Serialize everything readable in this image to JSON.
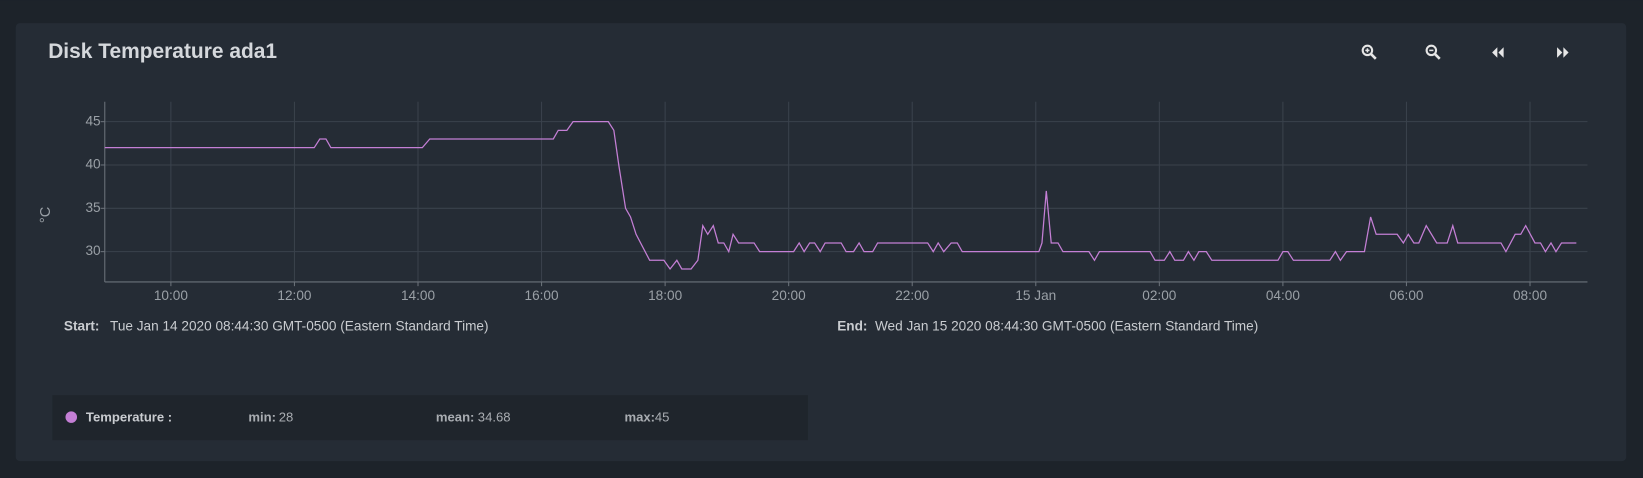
{
  "chart_data": {
    "type": "line",
    "title": "Disk Temperature ada1",
    "y_label": "°C",
    "x": [
      8.93,
      12.32,
      12.41,
      12.51,
      12.59,
      14.07,
      14.19,
      16.19,
      16.27,
      16.41,
      16.51,
      17.08,
      17.17,
      17.25,
      17.36,
      17.44,
      17.53,
      17.75,
      17.98,
      18.08,
      18.19,
      18.27,
      18.42,
      18.53,
      18.61,
      18.69,
      18.78,
      18.86,
      18.95,
      19.03,
      19.1,
      19.19,
      19.44,
      19.53,
      20.08,
      20.17,
      20.25,
      20.34,
      20.42,
      20.51,
      20.59,
      20.85,
      20.93,
      21.05,
      21.14,
      21.22,
      21.36,
      21.44,
      22.25,
      22.34,
      22.42,
      22.51,
      22.63,
      22.73,
      22.81,
      24.05,
      24.1,
      24.17,
      24.25,
      24.36,
      24.44,
      24.86,
      24.95,
      25.03,
      25.85,
      25.93,
      26.08,
      26.17,
      26.25,
      26.39,
      26.47,
      26.56,
      26.64,
      26.76,
      26.85,
      27.92,
      28.0,
      28.08,
      28.17,
      28.76,
      28.85,
      28.93,
      29.03,
      29.32,
      29.42,
      29.51,
      29.85,
      29.95,
      30.03,
      30.12,
      30.2,
      30.32,
      30.49,
      30.66,
      30.75,
      30.83,
      31.53,
      31.61,
      31.76,
      31.85,
      31.93,
      32.08,
      32.17,
      32.25,
      32.34,
      32.42,
      32.51,
      32.75
    ],
    "series": [
      {
        "name": "Temperature :",
        "color": "#c47fd5",
        "values": [
          42,
          42,
          43,
          43,
          42,
          42,
          43,
          43,
          44,
          44,
          45,
          45,
          44,
          40,
          35,
          34,
          32,
          29,
          29,
          28,
          29,
          28,
          28,
          29,
          33,
          32,
          33,
          31,
          31,
          30,
          32,
          31,
          31,
          30,
          30,
          31,
          30,
          31,
          31,
          30,
          31,
          31,
          30,
          30,
          31,
          30,
          30,
          31,
          31,
          30,
          31,
          30,
          31,
          31,
          30,
          30,
          31,
          37,
          31,
          31,
          30,
          30,
          29,
          30,
          30,
          29,
          29,
          30,
          29,
          29,
          30,
          29,
          30,
          30,
          29,
          29,
          30,
          30,
          29,
          29,
          30,
          29,
          30,
          30,
          34,
          32,
          32,
          31,
          32,
          31,
          31,
          33,
          31,
          31,
          33,
          31,
          31,
          30,
          32,
          32,
          33,
          31,
          31,
          30,
          31,
          30,
          31,
          31
        ]
      }
    ],
    "xlim": [
      8.93,
      32.93
    ],
    "ylim": [
      26.5,
      47.3
    ],
    "xticks": [
      {
        "value": 10,
        "label": "10:00"
      },
      {
        "value": 12,
        "label": "12:00"
      },
      {
        "value": 14,
        "label": "14:00"
      },
      {
        "value": 16,
        "label": "16:00"
      },
      {
        "value": 18,
        "label": "18:00"
      },
      {
        "value": 20,
        "label": "20:00"
      },
      {
        "value": 22,
        "label": "22:00"
      },
      {
        "value": 24,
        "label": "15 Jan"
      },
      {
        "value": 26,
        "label": "02:00"
      },
      {
        "value": 28,
        "label": "04:00"
      },
      {
        "value": 30,
        "label": "06:00"
      },
      {
        "value": 32,
        "label": "08:00"
      }
    ],
    "yticks": [
      30,
      35,
      40,
      45
    ],
    "grid": true
  },
  "range": {
    "start_label": "Start:",
    "start": "Tue Jan 14 2020 08:44:30 GMT-0500 (Eastern Standard Time)",
    "end_label": "End:",
    "end": "Wed Jan 15 2020 08:44:30 GMT-0500 (Eastern Standard Time)"
  },
  "stats": [
    {
      "label": "min:",
      "value": 28
    },
    {
      "label": "mean:",
      "value": 34.68
    },
    {
      "label": "max:",
      "value": 45
    }
  ]
}
